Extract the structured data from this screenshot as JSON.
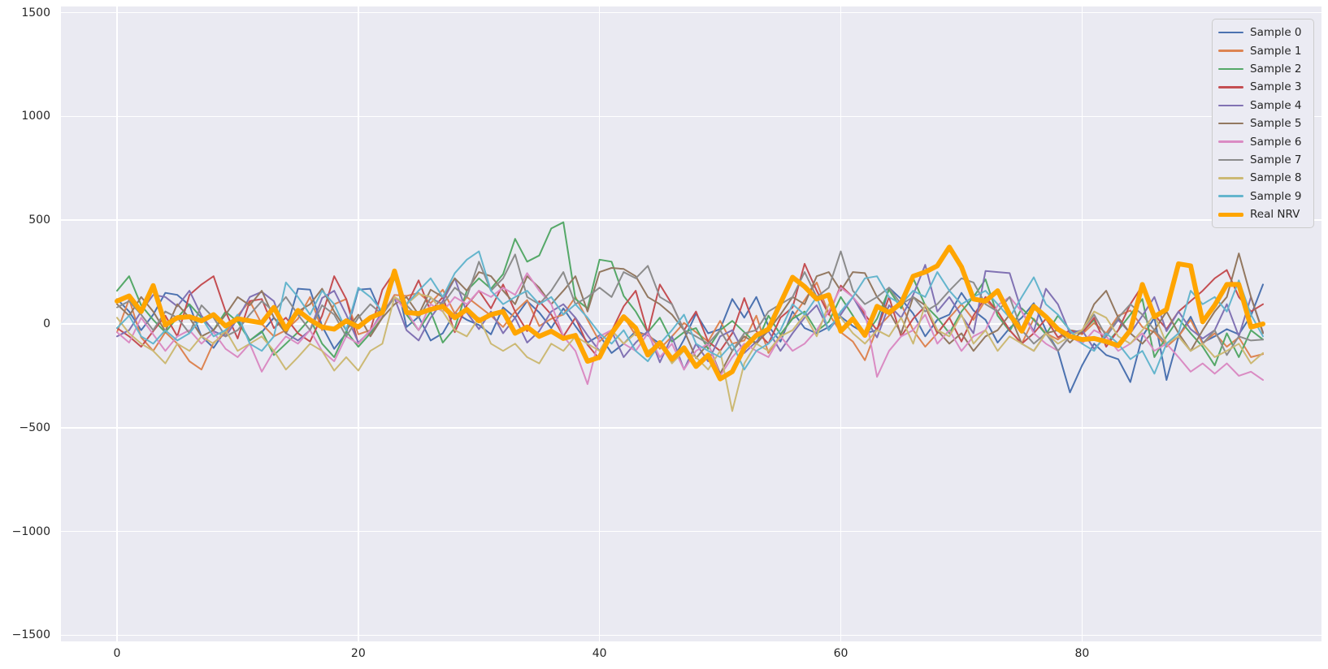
{
  "style": {
    "figure_bg": "#ffffff",
    "axes_bg": "#eaeaf2",
    "grid_color": "#ffffff",
    "tick_label_color": "#262626",
    "legend_bg": "#ebebf3",
    "legend_border": "#cccccc",
    "real_nrv_color": "#ffa500",
    "palette": [
      "#4c72b0",
      "#dd8452",
      "#55a868",
      "#c44e52",
      "#8172b3",
      "#937860",
      "#da8bc3",
      "#8c8c8c",
      "#ccb974",
      "#64b5cd"
    ]
  },
  "chart_data": {
    "type": "line",
    "title": "",
    "xlabel": "",
    "ylabel": "",
    "grid": true,
    "legend_position": "upper right",
    "x_ticks": [
      0,
      20,
      40,
      60,
      80
    ],
    "y_ticks": [
      1500,
      1000,
      500,
      0,
      -500,
      -1000,
      -1500
    ],
    "y_tick_labels": [
      "1500",
      "1000",
      "500",
      "0",
      "−500",
      "−1000",
      "−1500"
    ],
    "x_tick_labels": [
      "0",
      "20",
      "40",
      "60",
      "80"
    ],
    "xlim": [
      -4.65,
      99.85
    ],
    "ylim": [
      -1530,
      1530
    ],
    "x_start": 0,
    "x_step": 1,
    "n_points": 96,
    "series": [
      {
        "name": "Sample 0",
        "color": "#4c72b0",
        "line_width": 2,
        "values": [
          120,
          60,
          -30,
          45,
          150,
          140,
          90,
          -60,
          -115,
          -30,
          25,
          -80,
          -40,
          30,
          -35,
          170,
          165,
          -10,
          -120,
          -45,
          165,
          170,
          40,
          250,
          -15,
          35,
          -80,
          -45,
          55,
          20,
          -5,
          -50,
          80,
          30,
          110,
          55,
          -20,
          75,
          -10,
          -90,
          -55,
          -140,
          -95,
          -35,
          -55,
          -95,
          -180,
          -75,
          50,
          -45,
          -25,
          120,
          30,
          130,
          -10,
          -85,
          60,
          -20,
          -45,
          -15,
          35,
          -10,
          -45,
          -30,
          175,
          120,
          50,
          -60,
          20,
          45,
          150,
          65,
          20,
          -90,
          -20,
          30,
          100,
          -30,
          -130,
          -330,
          -200,
          -95,
          -150,
          -170,
          -280,
          -60,
          30,
          -270,
          -60,
          35,
          -90,
          -60,
          -25,
          -50,
          40,
          190
        ]
      },
      {
        "name": "Sample 1",
        "color": "#dd8452",
        "line_width": 2,
        "values": [
          -40,
          120,
          -65,
          -130,
          -40,
          -95,
          -180,
          -220,
          -90,
          -45,
          40,
          110,
          0,
          -60,
          -30,
          25,
          130,
          -30,
          95,
          120,
          -50,
          -30,
          45,
          140,
          135,
          150,
          100,
          165,
          50,
          130,
          85,
          40,
          -15,
          60,
          115,
          -10,
          25,
          45,
          130,
          20,
          -85,
          -30,
          35,
          -55,
          -45,
          -120,
          -60,
          5,
          -40,
          -85,
          15,
          -95,
          -80,
          40,
          -140,
          -55,
          30,
          115,
          200,
          50,
          -40,
          -85,
          -175,
          -20,
          40,
          95,
          -30,
          -110,
          -45,
          30,
          95,
          20,
          115,
          60,
          -30,
          -95,
          25,
          -45,
          -75,
          -30,
          -50,
          5,
          -45,
          40,
          65,
          -15,
          -40,
          -110,
          -60,
          20,
          -95,
          -45,
          -110,
          -65,
          -160,
          -145
        ]
      },
      {
        "name": "Sample 2",
        "color": "#55a868",
        "line_width": 2,
        "values": [
          160,
          230,
          90,
          20,
          -40,
          30,
          95,
          30,
          -30,
          60,
          10,
          -80,
          -35,
          -150,
          -95,
          -40,
          25,
          -95,
          -160,
          -35,
          -110,
          -45,
          30,
          260,
          45,
          -30,
          60,
          -90,
          -20,
          160,
          220,
          170,
          240,
          410,
          300,
          330,
          460,
          490,
          120,
          75,
          310,
          300,
          135,
          60,
          -40,
          30,
          -85,
          -40,
          -20,
          -120,
          -30,
          15,
          -40,
          -95,
          40,
          -50,
          25,
          60,
          -35,
          10,
          130,
          40,
          -60,
          25,
          165,
          75,
          220,
          90,
          30,
          -45,
          60,
          130,
          215,
          40,
          -35,
          75,
          20,
          -50,
          40,
          -30,
          -40,
          20,
          -95,
          -30,
          45,
          120,
          -160,
          -60,
          25,
          -45,
          -110,
          -200,
          -45,
          -160,
          -30,
          -75
        ]
      },
      {
        "name": "Sample 3",
        "color": "#c44e52",
        "line_width": 2,
        "values": [
          -20,
          -60,
          -110,
          -35,
          40,
          -60,
          140,
          190,
          230,
          60,
          -70,
          110,
          120,
          -20,
          30,
          -45,
          -85,
          40,
          230,
          120,
          -95,
          -30,
          165,
          250,
          90,
          210,
          60,
          130,
          -40,
          90,
          160,
          75,
          190,
          60,
          -35,
          110,
          45,
          -60,
          30,
          -100,
          -170,
          -35,
          85,
          160,
          -45,
          190,
          95,
          -30,
          60,
          -85,
          -130,
          -45,
          125,
          -35,
          -95,
          30,
          80,
          290,
          160,
          45,
          185,
          130,
          45,
          -30,
          130,
          -60,
          25,
          85,
          -45,
          30,
          -85,
          40,
          130,
          60,
          -30,
          -95,
          -45,
          25,
          -65,
          -30,
          -45,
          30,
          -110,
          -30,
          95,
          185,
          45,
          -25,
          60,
          110,
          160,
          220,
          260,
          130,
          60,
          95
        ]
      },
      {
        "name": "Sample 4",
        "color": "#8172b3",
        "line_width": 2,
        "values": [
          -60,
          -30,
          60,
          140,
          130,
          85,
          160,
          40,
          -35,
          -60,
          25,
          130,
          155,
          110,
          -45,
          -80,
          -30,
          125,
          160,
          45,
          -90,
          -35,
          60,
          125,
          -30,
          -80,
          30,
          110,
          220,
          55,
          -25,
          60,
          -45,
          30,
          -90,
          -35,
          60,
          95,
          30,
          -55,
          -130,
          -35,
          -160,
          -90,
          -35,
          -185,
          -60,
          -220,
          -95,
          -180,
          -60,
          -30,
          -140,
          -85,
          -35,
          -130,
          -45,
          30,
          90,
          -30,
          45,
          130,
          30,
          -65,
          90,
          30,
          140,
          285,
          60,
          130,
          40,
          -45,
          255,
          250,
          245,
          60,
          -35,
          170,
          95,
          -45,
          -30,
          -120,
          -60,
          20,
          -45,
          40,
          130,
          -35,
          60,
          -25,
          -70,
          -30,
          95,
          -60,
          130,
          -40
        ]
      },
      {
        "name": "Sample 5",
        "color": "#937860",
        "line_width": 2,
        "values": [
          95,
          40,
          130,
          60,
          -35,
          95,
          30,
          -60,
          -30,
          45,
          130,
          90,
          160,
          30,
          -45,
          60,
          95,
          170,
          60,
          -30,
          45,
          -60,
          30,
          95,
          130,
          45,
          165,
          130,
          220,
          160,
          250,
          230,
          160,
          95,
          230,
          175,
          95,
          160,
          230,
          60,
          250,
          270,
          265,
          230,
          130,
          95,
          45,
          -30,
          -165,
          -95,
          -240,
          -130,
          -60,
          -95,
          -30,
          45,
          130,
          95,
          230,
          250,
          160,
          250,
          245,
          130,
          60,
          -45,
          130,
          90,
          -30,
          -95,
          -45,
          -130,
          -60,
          -30,
          45,
          -95,
          -130,
          -45,
          -30,
          -90,
          -35,
          95,
          160,
          30,
          -45,
          -95,
          -30,
          60,
          -45,
          -130,
          -30,
          60,
          130,
          340,
          130,
          -45
        ]
      },
      {
        "name": "Sample 6",
        "color": "#da8bc3",
        "line_width": 2,
        "values": [
          -40,
          -90,
          30,
          -50,
          -130,
          -60,
          -30,
          -95,
          -40,
          -120,
          -160,
          -95,
          -230,
          -130,
          -60,
          -95,
          -30,
          -130,
          -180,
          -60,
          -95,
          -30,
          45,
          130,
          60,
          -30,
          95,
          60,
          130,
          95,
          160,
          130,
          175,
          140,
          245,
          160,
          95,
          -60,
          -130,
          -290,
          -60,
          -30,
          -95,
          -130,
          -45,
          -160,
          -95,
          -220,
          -130,
          -95,
          -250,
          -160,
          -95,
          -130,
          -160,
          -60,
          -130,
          -95,
          -30,
          60,
          175,
          130,
          60,
          -255,
          -130,
          -60,
          -30,
          45,
          -95,
          -30,
          -130,
          -60,
          -30,
          90,
          130,
          60,
          -45,
          -95,
          -130,
          -60,
          -95,
          -30,
          -60,
          -130,
          -95,
          -45,
          -130,
          -95,
          -160,
          -230,
          -190,
          -240,
          -190,
          -250,
          -230,
          -270
        ]
      },
      {
        "name": "Sample 7",
        "color": "#8c8c8c",
        "line_width": 2,
        "values": [
          80,
          110,
          45,
          -30,
          60,
          30,
          -45,
          90,
          30,
          -60,
          -30,
          45,
          110,
          60,
          130,
          45,
          -30,
          90,
          45,
          -60,
          30,
          95,
          45,
          130,
          90,
          30,
          125,
          95,
          175,
          130,
          300,
          160,
          220,
          335,
          130,
          95,
          160,
          250,
          95,
          130,
          175,
          130,
          250,
          220,
          280,
          130,
          95,
          -30,
          -60,
          -95,
          -30,
          -130,
          -45,
          -30,
          60,
          95,
          130,
          250,
          130,
          175,
          350,
          160,
          95,
          130,
          175,
          95,
          130,
          60,
          95,
          160,
          220,
          200,
          95,
          60,
          130,
          -30,
          -95,
          -45,
          -130,
          -60,
          -30,
          45,
          -60,
          30,
          95,
          45,
          -30,
          -95,
          -60,
          -130,
          -95,
          -30,
          -150,
          -60,
          -80,
          -75
        ]
      },
      {
        "name": "Sample 8",
        "color": "#ccb974",
        "line_width": 2,
        "values": [
          30,
          -45,
          -95,
          -130,
          -190,
          -95,
          -130,
          -60,
          -95,
          -30,
          -130,
          -95,
          -60,
          -130,
          -220,
          -160,
          -95,
          -130,
          -225,
          -160,
          -225,
          -130,
          -95,
          130,
          95,
          145,
          130,
          60,
          -30,
          -60,
          30,
          -95,
          -130,
          -95,
          -160,
          -190,
          -95,
          -130,
          -60,
          -95,
          -130,
          -30,
          -95,
          -45,
          -130,
          -95,
          -190,
          -130,
          -160,
          -220,
          -130,
          -420,
          -190,
          -95,
          -130,
          -60,
          -30,
          45,
          -60,
          95,
          30,
          -45,
          -95,
          -30,
          -60,
          30,
          -95,
          95,
          -30,
          -60,
          45,
          -95,
          -30,
          -130,
          -60,
          -95,
          -130,
          -45,
          -95,
          -60,
          -30,
          60,
          30,
          -60,
          -95,
          -30,
          45,
          -95,
          -60,
          -130,
          -95,
          -160,
          -130,
          -95,
          -190,
          -140
        ]
      },
      {
        "name": "Sample 9",
        "color": "#64b5cd",
        "line_width": 2,
        "values": [
          -20,
          40,
          -60,
          -95,
          -30,
          -80,
          -45,
          30,
          -60,
          -30,
          45,
          -95,
          -130,
          -60,
          200,
          130,
          45,
          160,
          95,
          -30,
          175,
          130,
          60,
          220,
          95,
          160,
          220,
          130,
          245,
          310,
          350,
          160,
          95,
          130,
          160,
          95,
          130,
          45,
          95,
          30,
          -45,
          -95,
          -30,
          -130,
          -180,
          -95,
          -30,
          45,
          -95,
          -130,
          -160,
          -95,
          -220,
          -130,
          -95,
          -30,
          95,
          45,
          130,
          -30,
          60,
          130,
          220,
          230,
          130,
          95,
          160,
          130,
          250,
          160,
          95,
          130,
          160,
          95,
          30,
          130,
          225,
          95,
          45,
          -30,
          -95,
          -130,
          -45,
          -95,
          -170,
          -130,
          -240,
          -95,
          -45,
          160,
          95,
          130,
          60,
          210,
          45,
          -60
        ]
      },
      {
        "name": "Real NRV",
        "color": "#ffa500",
        "line_width": 6,
        "values": [
          110,
          135,
          60,
          185,
          -5,
          30,
          35,
          15,
          45,
          -10,
          25,
          15,
          5,
          80,
          -25,
          65,
          20,
          -15,
          -25,
          15,
          -15,
          30,
          55,
          255,
          55,
          50,
          70,
          85,
          30,
          70,
          15,
          45,
          60,
          -45,
          -15,
          -60,
          -35,
          -70,
          -55,
          -180,
          -160,
          -45,
          35,
          -20,
          -150,
          -90,
          -170,
          -115,
          -205,
          -150,
          -265,
          -230,
          -115,
          -55,
          -25,
          100,
          225,
          180,
          120,
          140,
          -35,
          25,
          -55,
          85,
          55,
          100,
          230,
          250,
          280,
          370,
          275,
          120,
          110,
          160,
          45,
          -35,
          85,
          35,
          -25,
          -60,
          -75,
          -70,
          -85,
          -105,
          -30,
          190,
          35,
          70,
          290,
          280,
          10,
          90,
          190,
          190,
          -15,
          0
        ]
      }
    ]
  },
  "legend": {
    "entries": [
      "Sample 0",
      "Sample 1",
      "Sample 2",
      "Sample 3",
      "Sample 4",
      "Sample 5",
      "Sample 6",
      "Sample 7",
      "Sample 8",
      "Sample 9",
      "Real NRV"
    ]
  }
}
